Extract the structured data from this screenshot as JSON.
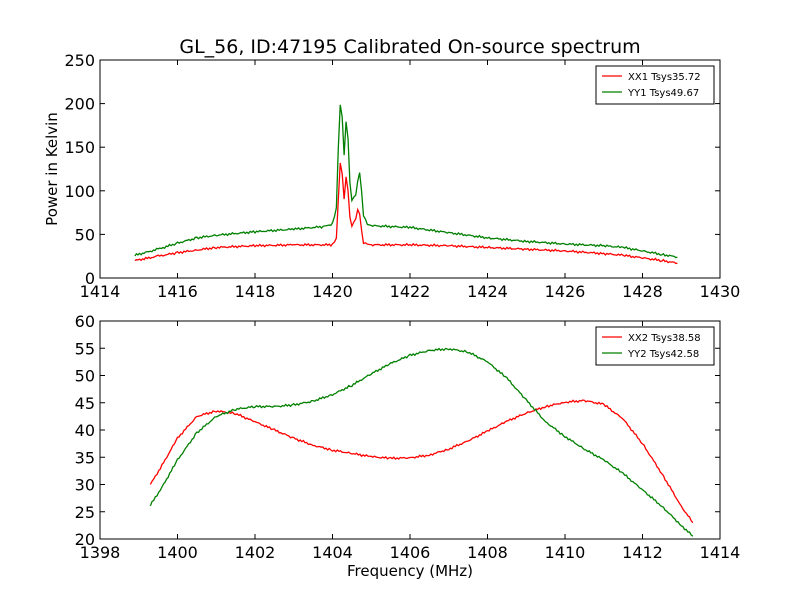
{
  "figure": {
    "title": "GL_56, ID:47195 Calibrated On-source spectrum"
  },
  "chart_data": [
    {
      "type": "line",
      "title": "GL_56, ID:47195 Calibrated On-source spectrum",
      "xlabel": "",
      "ylabel": "Power in Kelvin",
      "xlim": [
        1414,
        1430
      ],
      "ylim": [
        0,
        250
      ],
      "xticks": [
        1414,
        1416,
        1418,
        1420,
        1422,
        1424,
        1426,
        1428,
        1430
      ],
      "yticks": [
        0,
        50,
        100,
        150,
        200,
        250
      ],
      "grid": false,
      "legend_position": "top-right",
      "series": [
        {
          "name": "XX1 Tsys35.72",
          "color": "#ff0000",
          "x": [
            1414.9,
            1415.5,
            1416.0,
            1416.5,
            1417.0,
            1418.0,
            1419.0,
            1420.0,
            1420.1,
            1420.15,
            1420.2,
            1420.25,
            1420.3,
            1420.35,
            1420.4,
            1420.45,
            1420.5,
            1420.6,
            1420.65,
            1420.7,
            1420.75,
            1420.8,
            1420.9,
            1421.0,
            1422.0,
            1423.0,
            1424.0,
            1425.0,
            1426.0,
            1427.0,
            1427.5,
            1428.0,
            1428.5,
            1428.9
          ],
          "y": [
            20,
            25,
            29,
            32,
            35,
            37,
            38,
            38,
            45,
            90,
            133,
            120,
            90,
            115,
            100,
            70,
            60,
            68,
            78,
            73,
            55,
            40,
            39,
            38,
            38,
            37,
            35,
            33,
            31,
            28,
            26,
            23,
            20,
            17
          ]
        },
        {
          "name": "YY1 Tsys49.67",
          "color": "#008000",
          "x": [
            1414.9,
            1415.5,
            1416.0,
            1416.5,
            1417.0,
            1418.0,
            1419.0,
            1419.8,
            1420.0,
            1420.1,
            1420.15,
            1420.2,
            1420.25,
            1420.3,
            1420.35,
            1420.4,
            1420.45,
            1420.5,
            1420.6,
            1420.65,
            1420.7,
            1420.75,
            1420.8,
            1420.9,
            1421.0,
            1422.0,
            1423.0,
            1424.0,
            1425.0,
            1426.0,
            1427.0,
            1427.5,
            1428.0,
            1428.5,
            1428.9
          ],
          "y": [
            26,
            33,
            40,
            46,
            49,
            53,
            56,
            59,
            62,
            80,
            150,
            200,
            185,
            140,
            178,
            160,
            110,
            90,
            95,
            110,
            120,
            100,
            72,
            62,
            60,
            58,
            52,
            46,
            42,
            39,
            37,
            35,
            31,
            27,
            24
          ]
        }
      ]
    },
    {
      "type": "line",
      "title": "",
      "xlabel": "Frequency (MHz)",
      "ylabel": "",
      "xlim": [
        1398,
        1414
      ],
      "ylim": [
        20,
        60
      ],
      "xticks": [
        1398,
        1400,
        1402,
        1404,
        1406,
        1408,
        1410,
        1412,
        1414
      ],
      "yticks": [
        20,
        25,
        30,
        35,
        40,
        45,
        50,
        55,
        60
      ],
      "grid": false,
      "legend_position": "top-right",
      "series": [
        {
          "name": "XX2 Tsys38.58",
          "color": "#ff0000",
          "x": [
            1399.3,
            1399.6,
            1400.0,
            1400.5,
            1401.0,
            1401.5,
            1402.0,
            1402.5,
            1403.0,
            1403.5,
            1404.0,
            1404.5,
            1405.0,
            1405.5,
            1406.0,
            1406.5,
            1407.0,
            1407.5,
            1408.0,
            1408.5,
            1409.0,
            1409.5,
            1410.0,
            1410.5,
            1411.0,
            1411.5,
            1412.0,
            1412.5,
            1413.0,
            1413.3
          ],
          "y": [
            30,
            33.5,
            38.5,
            42.5,
            43.5,
            43,
            41.5,
            40,
            38.5,
            37.2,
            36.3,
            35.7,
            35.1,
            34.8,
            34.9,
            35.4,
            36.5,
            38,
            39.8,
            41.6,
            43.1,
            44.3,
            45.1,
            45.4,
            44.7,
            42,
            37.5,
            32,
            26,
            23
          ]
        },
        {
          "name": "YY2 Tsys42.58",
          "color": "#008000",
          "x": [
            1399.3,
            1399.6,
            1400.0,
            1400.5,
            1401.0,
            1401.5,
            1402.0,
            1402.5,
            1403.0,
            1403.5,
            1404.0,
            1404.5,
            1405.0,
            1405.5,
            1406.0,
            1406.5,
            1407.0,
            1407.5,
            1408.0,
            1408.5,
            1409.0,
            1409.5,
            1410.0,
            1410.5,
            1411.0,
            1411.5,
            1412.0,
            1412.5,
            1413.0,
            1413.3
          ],
          "y": [
            26.2,
            29.5,
            34.5,
            39.5,
            42.5,
            43.8,
            44.3,
            44.3,
            44.6,
            45.3,
            46.5,
            48.2,
            50.3,
            52.2,
            53.7,
            54.6,
            54.9,
            54.3,
            52.5,
            49.5,
            45.5,
            41.5,
            38.8,
            36.5,
            34.5,
            32,
            29,
            26,
            22.5,
            20.5
          ]
        }
      ]
    }
  ]
}
